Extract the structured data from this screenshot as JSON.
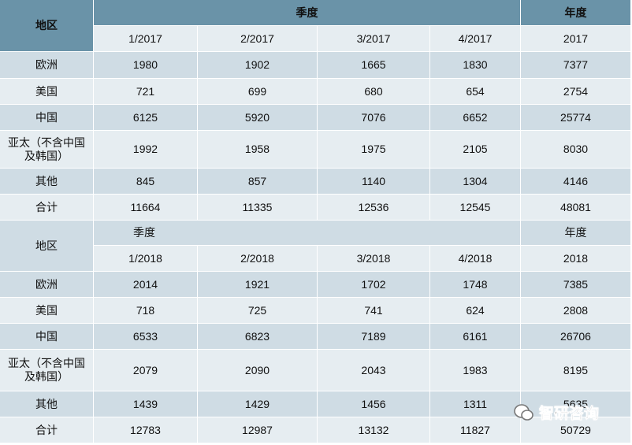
{
  "table1": {
    "region": "地区",
    "quarter": "季度",
    "year": "年度",
    "columns": [
      "1/2017",
      "2/2017",
      "3/2017",
      "4/2017",
      "2017"
    ],
    "rows": [
      [
        "欧洲",
        1980,
        1902,
        1665,
        1830,
        7377
      ],
      [
        "美国",
        721,
        699,
        680,
        654,
        2754
      ],
      [
        "中国",
        6125,
        5920,
        7076,
        6652,
        25774
      ],
      [
        "亚太（不含中国及韩国）",
        1992,
        1958,
        1975,
        2105,
        8030
      ],
      [
        "其他",
        845,
        857,
        1140,
        1304,
        4146
      ],
      [
        "合计",
        11664,
        11335,
        12536,
        12545,
        48081
      ]
    ]
  },
  "table2": {
    "region": "地区",
    "quarter": "季度",
    "year": "年度",
    "columns": [
      "1/2018",
      "2/2018",
      "3/2018",
      "4/2018",
      "2018"
    ],
    "rows": [
      [
        "欧洲",
        2014,
        1921,
        1702,
        1748,
        7385
      ],
      [
        "美国",
        718,
        725,
        741,
        624,
        2808
      ],
      [
        "中国",
        6533,
        6823,
        7189,
        6161,
        26706
      ],
      [
        "亚太（不含中国及韩国）",
        2079,
        2090,
        2043,
        1983,
        8195
      ],
      [
        "其他",
        1439,
        1429,
        1456,
        1311,
        5635
      ],
      [
        "合计",
        12783,
        12987,
        13132,
        11827,
        50729
      ]
    ]
  },
  "watermark": "智研咨询"
}
